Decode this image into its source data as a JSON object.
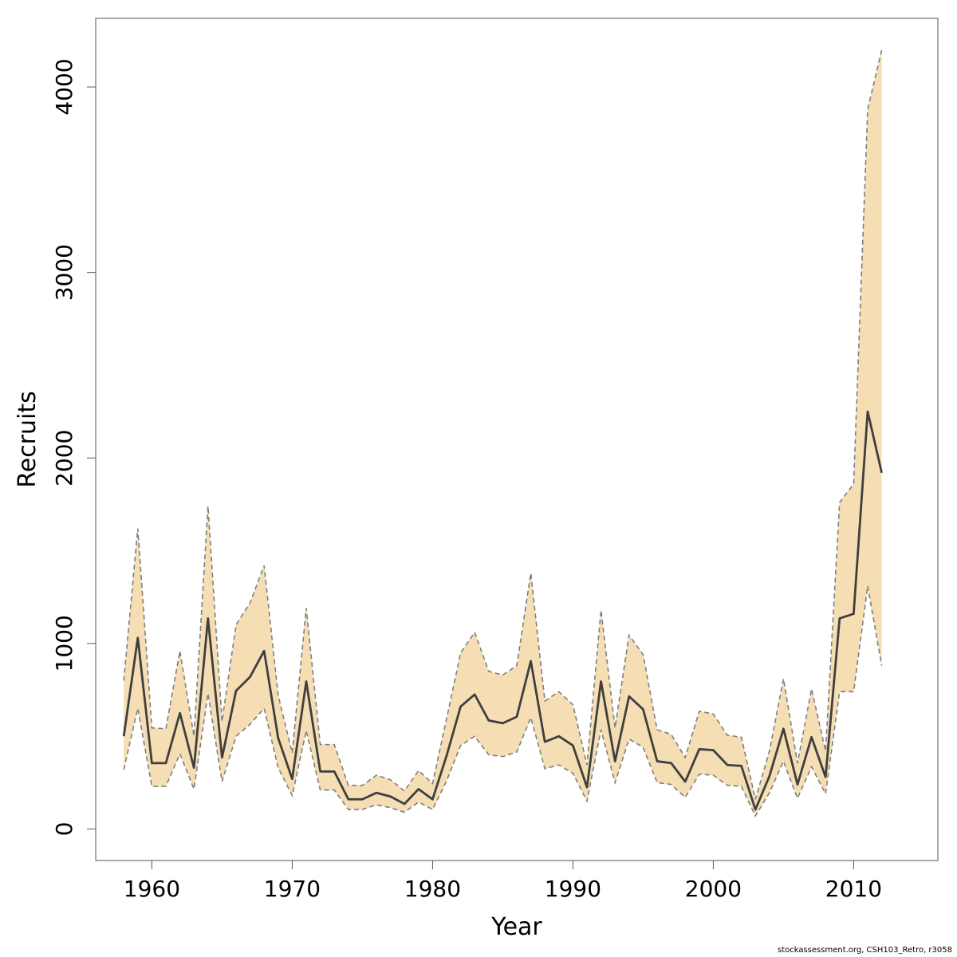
{
  "chart_data": {
    "type": "area",
    "title": "",
    "xlabel": "Year",
    "ylabel": "Recruits",
    "xlim": [
      1956,
      2016
    ],
    "ylim": [
      -170,
      4370
    ],
    "xticks": [
      1960,
      1970,
      1980,
      1990,
      2000,
      2010
    ],
    "yticks": [
      0,
      1000,
      2000,
      3000,
      4000
    ],
    "grid": false,
    "legend": "none",
    "colors": {
      "band": "#f5deb3",
      "band_edge": "#7f7f7f",
      "line": "#3f3f3f"
    },
    "x": [
      1958,
      1959,
      1960,
      1961,
      1962,
      1963,
      1964,
      1965,
      1966,
      1967,
      1968,
      1969,
      1970,
      1971,
      1972,
      1973,
      1974,
      1975,
      1976,
      1977,
      1978,
      1979,
      1980,
      1981,
      1982,
      1983,
      1984,
      1985,
      1986,
      1987,
      1988,
      1989,
      1990,
      1991,
      1992,
      1993,
      1994,
      1995,
      1996,
      1997,
      1998,
      1999,
      2000,
      2001,
      2002,
      2003,
      2004,
      2005,
      2006,
      2007,
      2008,
      2009,
      2010,
      2011,
      2012
    ],
    "series": [
      {
        "role": "estimate",
        "values": [
          500,
          1030,
          355,
          355,
          625,
          330,
          1135,
          385,
          745,
          820,
          960,
          490,
          270,
          795,
          310,
          310,
          160,
          160,
          195,
          175,
          135,
          215,
          160,
          395,
          660,
          725,
          585,
          570,
          605,
          905,
          470,
          500,
          450,
          225,
          795,
          365,
          715,
          645,
          365,
          355,
          255,
          430,
          425,
          345,
          340,
          105,
          285,
          540,
          240,
          495,
          280,
          1135,
          1160,
          2250,
          1920
        ]
      },
      {
        "role": "upper",
        "values": [
          800,
          1620,
          545,
          540,
          960,
          500,
          1740,
          580,
          1100,
          1220,
          1420,
          720,
          410,
          1190,
          455,
          455,
          235,
          235,
          290,
          265,
          205,
          315,
          245,
          595,
          950,
          1060,
          850,
          830,
          880,
          1380,
          690,
          740,
          670,
          345,
          1180,
          545,
          1045,
          940,
          535,
          510,
          385,
          635,
          620,
          505,
          495,
          160,
          420,
          810,
          355,
          755,
          420,
          1760,
          1860,
          3880,
          4200
        ]
      },
      {
        "role": "lower",
        "values": [
          320,
          650,
          230,
          230,
          405,
          215,
          730,
          255,
          500,
          565,
          650,
          330,
          180,
          530,
          210,
          210,
          105,
          105,
          130,
          115,
          90,
          145,
          105,
          260,
          450,
          500,
          400,
          390,
          415,
          600,
          325,
          345,
          300,
          150,
          535,
          250,
          485,
          440,
          250,
          240,
          170,
          295,
          290,
          235,
          230,
          70,
          195,
          365,
          165,
          335,
          190,
          740,
          740,
          1310,
          880
        ]
      }
    ]
  },
  "footer": "stockassessment.org, CSH103_Retro, r3058"
}
